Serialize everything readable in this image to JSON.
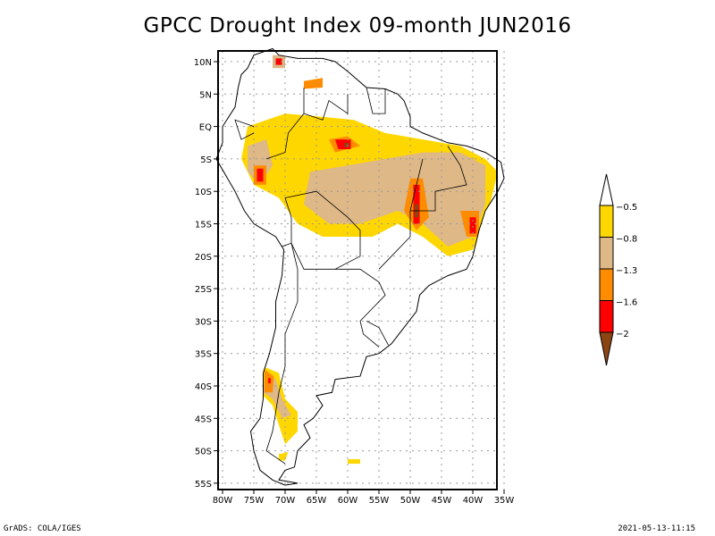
{
  "title": "GPCC Drought Index 09-month JUN2016",
  "footer": {
    "left": "GrADS: COLA/IGES",
    "right": "2021-05-13-11:15"
  },
  "map": {
    "region": "South America",
    "lon_range": [
      -81,
      -32
    ],
    "lat_range": [
      -56,
      12
    ],
    "lon_ticks": [
      "80W",
      "75W",
      "70W",
      "65W",
      "60W",
      "55W",
      "50W",
      "45W",
      "40W",
      "35W"
    ],
    "lat_ticks": [
      "10N",
      "5N",
      "EQ",
      "5S",
      "10S",
      "15S",
      "20S",
      "25S",
      "30S",
      "35S",
      "40S",
      "45S",
      "50S",
      "55S"
    ]
  },
  "colorbar": {
    "labels": [
      "-0.5",
      "-0.8",
      "-1.3",
      "-1.6",
      "-2"
    ],
    "colors": {
      "above": "#ffffff",
      "band1": "#ffd700",
      "band2": "#deb887",
      "band3": "#ff8c00",
      "band4": "#ff0000",
      "below": "#8b4513"
    }
  }
}
